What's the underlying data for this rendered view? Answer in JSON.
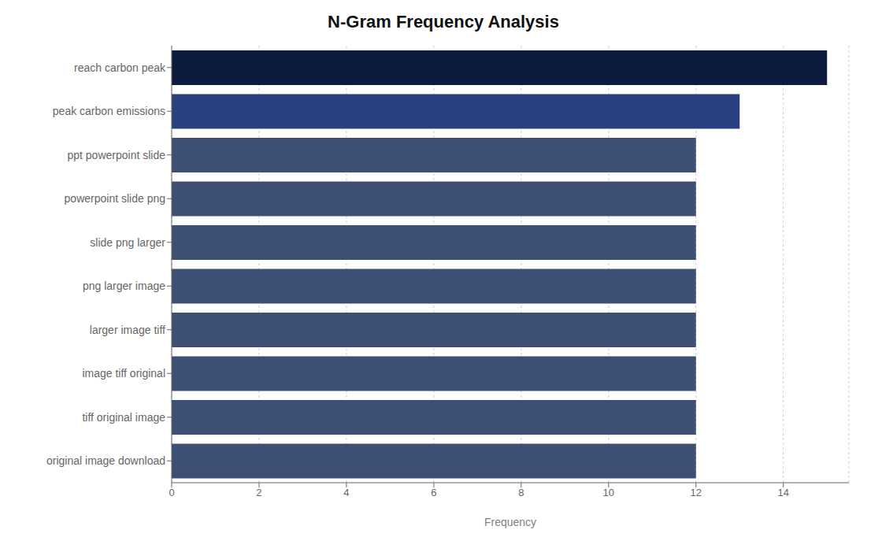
{
  "chart_data": {
    "type": "bar",
    "orientation": "horizontal",
    "title": "N-Gram Frequency Analysis",
    "xlabel": "Frequency",
    "categories": [
      "original image download",
      "tiff original image",
      "image tiff original",
      "larger image tiff",
      "png larger image",
      "slide png larger",
      "powerpoint slide png",
      "ppt powerpoint slide",
      "peak carbon emissions",
      "reach carbon peak"
    ],
    "values": [
      12,
      12,
      12,
      12,
      12,
      12,
      12,
      12,
      13,
      15
    ],
    "colors": [
      "#3d4f72",
      "#3d4f72",
      "#3d4f72",
      "#3d4f72",
      "#3d4f72",
      "#3d4f72",
      "#3d4f72",
      "#3d4f72",
      "#2b4080",
      "#0d1b3e"
    ],
    "xlim": [
      0,
      15.5
    ],
    "xticks": [
      0,
      2,
      4,
      6,
      8,
      10,
      12,
      14
    ],
    "grid": true
  }
}
